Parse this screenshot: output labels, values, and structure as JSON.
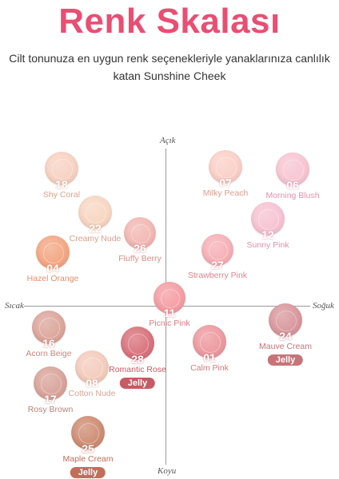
{
  "header": {
    "title": "Renk Skalası",
    "subtitle": "Cilt tonunuza en uygun renk seçenekleriyle yanaklarınıza canlılık katan Sunshine Cheek"
  },
  "axes": {
    "top": "Açık",
    "bottom": "Koyu",
    "left": "Sıcak",
    "right": "Soğuk"
  },
  "shades": [
    {
      "number": "18",
      "name": "Shy Coral",
      "color": "#f7d2c2",
      "label_color": "#e3a08a"
    },
    {
      "number": "07",
      "name": "Milky Peach",
      "color": "#fad0c8",
      "label_color": "#e49b8f"
    },
    {
      "number": "06",
      "name": "Morning Blush",
      "color": "#f7c6d3",
      "label_color": "#e491a8"
    },
    {
      "number": "22",
      "name": "Creamy Nude",
      "color": "#f8d6c2",
      "label_color": "#d9a088"
    },
    {
      "number": "26",
      "name": "Fluffy Berry",
      "color": "#f2b8b3",
      "label_color": "#df8b88"
    },
    {
      "number": "12",
      "name": "Sunny Pink",
      "color": "#f7c3d2",
      "label_color": "#e690ab"
    },
    {
      "number": "04",
      "name": "Hazel Orange",
      "color": "#f3a784",
      "label_color": "#e68f6c"
    },
    {
      "number": "27",
      "name": "Strawberry Pink",
      "color": "#f6b0b6",
      "label_color": "#e6828d"
    },
    {
      "number": "11",
      "name": "Picnic Pink",
      "color": "#f59ea4",
      "label_color": "#e37a82"
    },
    {
      "number": "24",
      "name": "Mauve Cream",
      "color": "#d9989d",
      "label_color": "#c67478",
      "jelly": "Jelly"
    },
    {
      "number": "16",
      "name": "Acorn Beige",
      "color": "#dca69c",
      "label_color": "#c7877c"
    },
    {
      "number": "28",
      "name": "Romantic Rose",
      "color": "#d9737c",
      "label_color": "#c75a64",
      "jelly": "Jelly"
    },
    {
      "number": "01",
      "name": "Calm Pink",
      "color": "#ec9aa0",
      "label_color": "#d77880"
    },
    {
      "number": "08",
      "name": "Cotton Nude",
      "color": "#f3ccbd",
      "label_color": "#d7a696"
    },
    {
      "number": "17",
      "name": "Rosy Brown",
      "color": "#d9a49b",
      "label_color": "#b9817a"
    },
    {
      "number": "25",
      "name": "Maple Cream",
      "color": "#cf8d74",
      "label_color": "#c26e58",
      "jelly": "Jelly"
    }
  ]
}
